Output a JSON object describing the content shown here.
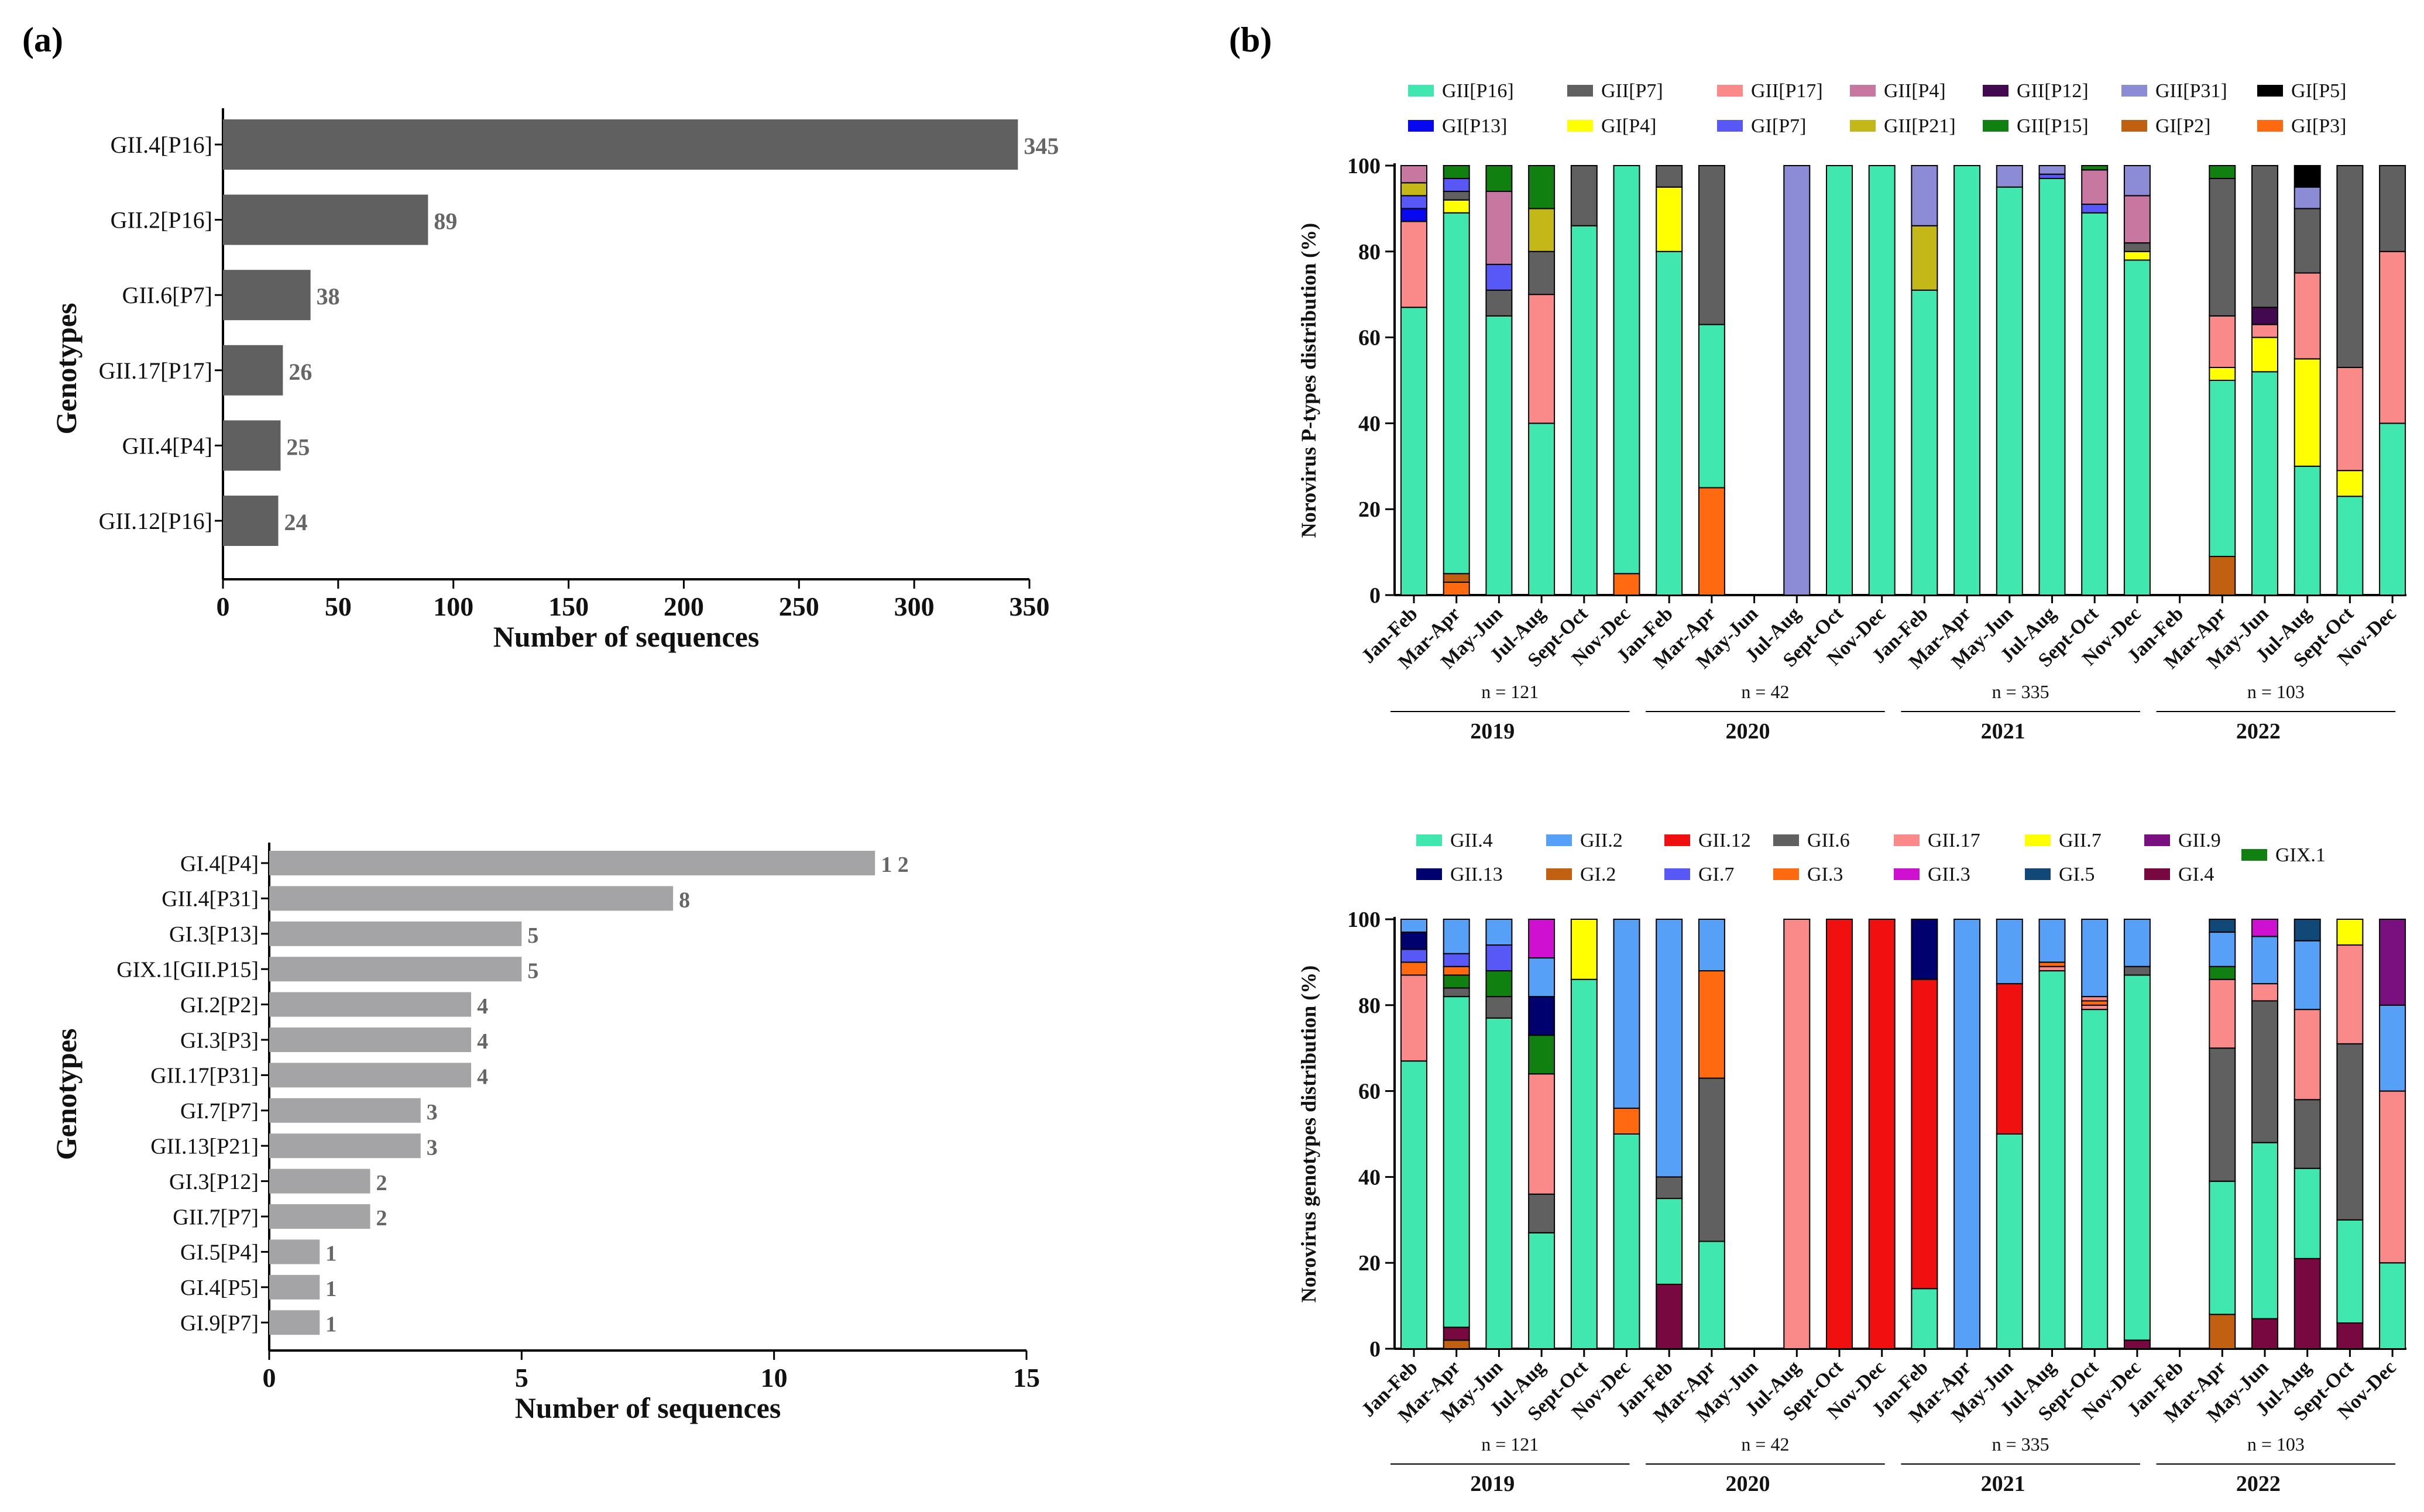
{
  "panels": {
    "a": "(a)",
    "b": "(b)"
  },
  "chart_data": [
    {
      "id": "a1",
      "type": "bar",
      "orientation": "horizontal",
      "categories": [
        "GII.4[P16]",
        "GII.2[P16]",
        "GII.6[P7]",
        "GII.17[P17]",
        "GII.4[P4]",
        "GII.12[P16]"
      ],
      "values": [
        345,
        89,
        38,
        26,
        25,
        24
      ],
      "value_labels": [
        "345",
        "89",
        "38",
        "26",
        "25",
        "24"
      ],
      "xlabel": "Number of sequences",
      "ylabel": "Genotypes",
      "xlim": [
        0,
        350
      ],
      "xticks": [
        "0",
        "50",
        "100",
        "150",
        "200",
        "250",
        "300",
        "350"
      ],
      "color": "#606060"
    },
    {
      "id": "a2",
      "type": "bar",
      "orientation": "horizontal",
      "categories": [
        "GI.4[P4]",
        "GII.4[P31]",
        "GI.3[P13]",
        "GIX.1[GII.P15]",
        "GI.2[P2]",
        "GI.3[P3]",
        "GII.17[P31]",
        "GI.7[P7]",
        "GII.13[P21]",
        "GI.3[P12]",
        "GII.7[P7]",
        "GI.5[P4]",
        "GI.4[P5]",
        "GI.9[P7]"
      ],
      "values": [
        12,
        8,
        5,
        5,
        4,
        4,
        4,
        3,
        3,
        2,
        2,
        1,
        1,
        1
      ],
      "value_labels": [
        "1 2",
        "8",
        "5",
        "5",
        "4",
        "4",
        "4",
        "3",
        "3",
        "2",
        "2",
        "1",
        "1",
        "1"
      ],
      "xlabel": "Number of sequences",
      "ylabel": "Genotypes",
      "xlim": [
        0,
        15
      ],
      "xticks": [
        "0",
        "5",
        "10",
        "15"
      ],
      "color": "#a4a4a6"
    },
    {
      "id": "b1",
      "type": "bar",
      "stacked": true,
      "ylabel": "Norovirus P-types distribution (%)",
      "ylim": [
        0,
        100
      ],
      "yticks": [
        "0",
        "20",
        "40",
        "60",
        "80",
        "100"
      ],
      "categories": [
        "Jan-Feb",
        "Mar-Apr",
        "May-Jun",
        "Jul-Aug",
        "Sept-Oct",
        "Nov-Dec",
        "Jan-Feb",
        "Mar-Apr",
        "May-Jun",
        "Jul-Aug",
        "Sept-Oct",
        "Nov-Dec",
        "Jan-Feb",
        "Mar-Apr",
        "May-Jun",
        "Jul-Aug",
        "Sept-Oct",
        "Nov-Dec",
        "Jan-Feb",
        "Mar-Apr",
        "May-Jun",
        "Jul-Aug",
        "Sept-Oct",
        "Nov-Dec"
      ],
      "legend": [
        {
          "name": "GII[P16]",
          "color": "#40e8b0"
        },
        {
          "name": "GII[P7]",
          "color": "#606060"
        },
        {
          "name": "GII[P17]",
          "color": "#fa8a8a"
        },
        {
          "name": "GII[P4]",
          "color": "#c878a0"
        },
        {
          "name": "GII[P12]",
          "color": "#420850"
        },
        {
          "name": "GII[P31]",
          "color": "#8c8cd6"
        },
        {
          "name": "GI[P5]",
          "color": "#000000"
        },
        {
          "name": "GI[P13]",
          "color": "#0808f0"
        },
        {
          "name": "GI[P4]",
          "color": "#ffff00"
        },
        {
          "name": "GI[P7]",
          "color": "#5858f6"
        },
        {
          "name": "GII[P21]",
          "color": "#c4b818"
        },
        {
          "name": "GII[P15]",
          "color": "#108010"
        },
        {
          "name": "GI[P2]",
          "color": "#c06010"
        },
        {
          "name": "GI[P3]",
          "color": "#ff6a10"
        }
      ],
      "bars": [
        [
          [
            "GII[P16]",
            67
          ],
          [
            "GII[P17]",
            20
          ],
          [
            "GI[P13]",
            3
          ],
          [
            "GI[P7]",
            3
          ],
          [
            "GII[P21]",
            3
          ],
          [
            "GII[P4]",
            4
          ]
        ],
        [
          [
            "GI[P3]",
            3
          ],
          [
            "GI[P2]",
            2
          ],
          [
            "GII[P16]",
            84
          ],
          [
            "GI[P4]",
            3
          ],
          [
            "GII[P7]",
            2
          ],
          [
            "GI[P7]",
            3
          ],
          [
            "GII[P15]",
            3
          ]
        ],
        [
          [
            "GII[P16]",
            65
          ],
          [
            "GII[P7]",
            6
          ],
          [
            "GI[P7]",
            6
          ],
          [
            "GII[P4]",
            17
          ],
          [
            "GII[P15]",
            6
          ]
        ],
        [
          [
            "GII[P16]",
            40
          ],
          [
            "GII[P17]",
            30
          ],
          [
            "GII[P7]",
            10
          ],
          [
            "GII[P21]",
            10
          ],
          [
            "GII[P15]",
            10
          ]
        ],
        [
          [
            "GII[P16]",
            86
          ],
          [
            "GII[P7]",
            14
          ]
        ],
        [
          [
            "GI[P3]",
            5
          ],
          [
            "GII[P16]",
            95
          ]
        ],
        [
          [
            "GII[P16]",
            80
          ],
          [
            "GI[P4]",
            15
          ],
          [
            "GII[P7]",
            5
          ]
        ],
        [
          [
            "GI[P3]",
            25
          ],
          [
            "GII[P16]",
            38
          ],
          [
            "GII[P7]",
            37
          ]
        ],
        [],
        [
          [
            "GII[P31]",
            100
          ]
        ],
        [
          [
            "GII[P16]",
            100
          ]
        ],
        [
          [
            "GII[P16]",
            100
          ]
        ],
        [
          [
            "GII[P16]",
            71
          ],
          [
            "GII[P21]",
            15
          ],
          [
            "GII[P31]",
            14
          ]
        ],
        [
          [
            "GII[P16]",
            100
          ]
        ],
        [
          [
            "GII[P16]",
            95
          ],
          [
            "GII[P31]",
            5
          ]
        ],
        [
          [
            "GII[P16]",
            97
          ],
          [
            "GI[P7]",
            1
          ],
          [
            "GII[P31]",
            2
          ]
        ],
        [
          [
            "GII[P16]",
            89
          ],
          [
            "GI[P7]",
            2
          ],
          [
            "GII[P4]",
            8
          ],
          [
            "GII[P15]",
            1
          ]
        ],
        [
          [
            "GII[P16]",
            78
          ],
          [
            "GI[P4]",
            2
          ],
          [
            "GII[P7]",
            2
          ],
          [
            "GII[P4]",
            11
          ],
          [
            "GII[P31]",
            7
          ]
        ],
        [],
        [
          [
            "GI[P2]",
            9
          ],
          [
            "GII[P16]",
            41
          ],
          [
            "GI[P4]",
            3
          ],
          [
            "GII[P17]",
            12
          ],
          [
            "GII[P7]",
            32
          ],
          [
            "GII[P15]",
            3
          ]
        ],
        [
          [
            "GII[P16]",
            52
          ],
          [
            "GI[P4]",
            8
          ],
          [
            "GII[P17]",
            3
          ],
          [
            "GII[P12]",
            4
          ],
          [
            "GII[P7]",
            33
          ]
        ],
        [
          [
            "GII[P16]",
            30
          ],
          [
            "GI[P4]",
            25
          ],
          [
            "GII[P17]",
            20
          ],
          [
            "GII[P7]",
            15
          ],
          [
            "GII[P31]",
            5
          ],
          [
            "GI[P5]",
            5
          ]
        ],
        [
          [
            "GII[P16]",
            23
          ],
          [
            "GI[P4]",
            6
          ],
          [
            "GII[P17]",
            24
          ],
          [
            "GII[P7]",
            47
          ]
        ],
        [
          [
            "GII[P16]",
            40
          ],
          [
            "GII[P17]",
            40
          ],
          [
            "GII[P7]",
            20
          ]
        ]
      ],
      "groups": [
        {
          "n": "n = 121",
          "year": "2019"
        },
        {
          "n": "n = 42",
          "year": "2020"
        },
        {
          "n": "n = 335",
          "year": "2021"
        },
        {
          "n": "n = 103",
          "year": "2022"
        }
      ]
    },
    {
      "id": "b2",
      "type": "bar",
      "stacked": true,
      "ylabel": "Norovirus genotypes distribution (%)",
      "ylim": [
        0,
        100
      ],
      "yticks": [
        "0",
        "20",
        "40",
        "60",
        "80",
        "100"
      ],
      "categories": [
        "Jan-Feb",
        "Mar-Apr",
        "May-Jun",
        "Jul-Aug",
        "Sept-Oct",
        "Nov-Dec",
        "Jan-Feb",
        "Mar-Apr",
        "May-Jun",
        "Jul-Aug",
        "Sept-Oct",
        "Nov-Dec",
        "Jan-Feb",
        "Mar-Apr",
        "May-Jun",
        "Jul-Aug",
        "Sept-Oct",
        "Nov-Dec",
        "Jan-Feb",
        "Mar-Apr",
        "May-Jun",
        "Jul-Aug",
        "Sept-Oct",
        "Nov-Dec"
      ],
      "legend": [
        {
          "name": "GII.4",
          "color": "#40e8b0"
        },
        {
          "name": "GII.2",
          "color": "#56a0f8"
        },
        {
          "name": "GII.12",
          "color": "#f01010"
        },
        {
          "name": "GII.6",
          "color": "#606060"
        },
        {
          "name": "GII.17",
          "color": "#fa8a8a"
        },
        {
          "name": "GII.7",
          "color": "#ffff00"
        },
        {
          "name": "GII.9",
          "color": "#7a1080"
        },
        {
          "name": "GIX.1",
          "color": "#108010"
        },
        {
          "name": "GII.13",
          "color": "#00006e"
        },
        {
          "name": "GI.2",
          "color": "#c06010"
        },
        {
          "name": "GI.7",
          "color": "#5858f6"
        },
        {
          "name": "GI.3",
          "color": "#ff6a10"
        },
        {
          "name": "GII.3",
          "color": "#d010d0"
        },
        {
          "name": "GI.5",
          "color": "#104878"
        },
        {
          "name": "GI.4",
          "color": "#780840"
        }
      ],
      "bars": [
        [
          [
            "GII.4",
            67
          ],
          [
            "GII.17",
            20
          ],
          [
            "GI.3",
            3
          ],
          [
            "GI.7",
            3
          ],
          [
            "GII.13",
            4
          ],
          [
            "GII.2",
            3
          ]
        ],
        [
          [
            "GI.2",
            2
          ],
          [
            "GI.4",
            3
          ],
          [
            "GII.4",
            77
          ],
          [
            "GII.6",
            2
          ],
          [
            "GIX.1",
            3
          ],
          [
            "GI.3",
            2
          ],
          [
            "GI.7",
            3
          ],
          [
            "GII.2",
            8
          ]
        ],
        [
          [
            "GII.4",
            77
          ],
          [
            "GII.6",
            5
          ],
          [
            "GIX.1",
            6
          ],
          [
            "GI.7",
            6
          ],
          [
            "GII.2",
            6
          ]
        ],
        [
          [
            "GII.4",
            27
          ],
          [
            "GII.6",
            9
          ],
          [
            "GII.17",
            28
          ],
          [
            "GIX.1",
            9
          ],
          [
            "GII.13",
            9
          ],
          [
            "GII.2",
            9
          ],
          [
            "GII.3",
            9
          ]
        ],
        [
          [
            "GII.4",
            86
          ],
          [
            "GII.7",
            14
          ]
        ],
        [
          [
            "GII.4",
            50
          ],
          [
            "GI.3",
            6
          ],
          [
            "GII.2",
            44
          ]
        ],
        [
          [
            "GI.4",
            15
          ],
          [
            "GII.4",
            20
          ],
          [
            "GII.6",
            5
          ],
          [
            "GII.2",
            60
          ]
        ],
        [
          [
            "GII.4",
            25
          ],
          [
            "GII.6",
            38
          ],
          [
            "GI.3",
            25
          ],
          [
            "GII.2",
            12
          ]
        ],
        [],
        [
          [
            "GII.17",
            100
          ]
        ],
        [
          [
            "GII.12",
            100
          ]
        ],
        [
          [
            "GII.12",
            100
          ]
        ],
        [
          [
            "GII.4",
            14
          ],
          [
            "GII.12",
            72
          ],
          [
            "GII.13",
            14
          ]
        ],
        [
          [
            "GII.2",
            100
          ]
        ],
        [
          [
            "GII.4",
            50
          ],
          [
            "GII.12",
            35
          ],
          [
            "GII.2",
            15
          ]
        ],
        [
          [
            "GII.4",
            88
          ],
          [
            "GII.17",
            1
          ],
          [
            "GI.3",
            1
          ],
          [
            "GII.2",
            10
          ]
        ],
        [
          [
            "GII.4",
            79
          ],
          [
            "GII.17",
            1
          ],
          [
            "GI.3",
            1
          ],
          [
            "GII.17",
            1
          ],
          [
            "GII.2",
            18
          ]
        ],
        [
          [
            "GI.4",
            2
          ],
          [
            "GII.4",
            85
          ],
          [
            "GII.6",
            2
          ],
          [
            "GII.2",
            11
          ]
        ],
        [],
        [
          [
            "GI.2",
            8
          ],
          [
            "GII.4",
            31
          ],
          [
            "GII.6",
            31
          ],
          [
            "GII.17",
            16
          ],
          [
            "GIX.1",
            3
          ],
          [
            "GII.2",
            8
          ],
          [
            "GI.5",
            3
          ]
        ],
        [
          [
            "GI.4",
            7
          ],
          [
            "GII.4",
            41
          ],
          [
            "GII.6",
            33
          ],
          [
            "GII.17",
            4
          ],
          [
            "GII.2",
            11
          ],
          [
            "GII.3",
            4
          ]
        ],
        [
          [
            "GI.4",
            21
          ],
          [
            "GII.4",
            21
          ],
          [
            "GII.6",
            16
          ],
          [
            "GII.17",
            21
          ],
          [
            "GII.2",
            16
          ],
          [
            "GI.5",
            5
          ]
        ],
        [
          [
            "GI.4",
            6
          ],
          [
            "GII.4",
            24
          ],
          [
            "GII.6",
            41
          ],
          [
            "GII.17",
            23
          ],
          [
            "GII.7",
            6
          ]
        ],
        [
          [
            "GII.4",
            20
          ],
          [
            "GII.17",
            40
          ],
          [
            "GII.2",
            20
          ],
          [
            "GII.9",
            20
          ]
        ]
      ],
      "groups": [
        {
          "n": "n = 121",
          "year": "2019"
        },
        {
          "n": "n = 42",
          "year": "2020"
        },
        {
          "n": "n = 335",
          "year": "2021"
        },
        {
          "n": "n = 103",
          "year": "2022"
        }
      ]
    }
  ]
}
